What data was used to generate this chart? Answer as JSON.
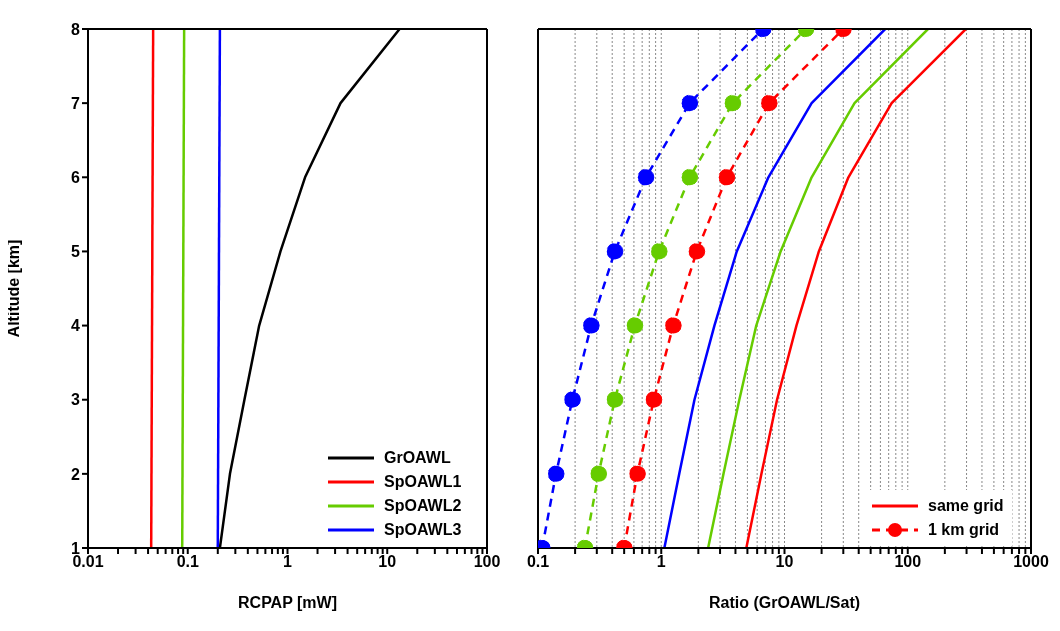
{
  "chart_data": [
    {
      "type": "line",
      "xlabel": "RCPAP [mW]",
      "ylabel": "Altitude [km]",
      "log": "x",
      "grid": false,
      "legend": "bottom right",
      "marker": "none",
      "line_style": "solid",
      "xlim": [
        0.01,
        100
      ],
      "xticks": [
        0.01,
        {
          "value": 0.02,
          "label": null
        },
        {
          "value": 0.03,
          "label": null
        },
        {
          "value": 0.04,
          "label": null
        },
        {
          "value": 0.05,
          "label": null
        },
        {
          "value": 0.06,
          "label": null
        },
        {
          "value": 0.07,
          "label": null
        },
        {
          "value": 0.08,
          "label": null
        },
        {
          "value": 0.09,
          "label": null
        },
        0.1,
        {
          "value": 0.2,
          "label": null
        },
        {
          "value": 0.3,
          "label": null
        },
        {
          "value": 0.4,
          "label": null
        },
        {
          "value": 0.5,
          "label": null
        },
        {
          "value": 0.6,
          "label": null
        },
        {
          "value": 0.7,
          "label": null
        },
        {
          "value": 0.8,
          "label": null
        },
        {
          "value": 0.9,
          "label": null
        },
        1,
        {
          "value": 2,
          "label": null
        },
        {
          "value": 3,
          "label": null
        },
        {
          "value": 4,
          "label": null
        },
        {
          "value": 5,
          "label": null
        },
        {
          "value": 6,
          "label": null
        },
        {
          "value": 7,
          "label": null
        },
        {
          "value": 8,
          "label": null
        },
        {
          "value": 9,
          "label": null
        },
        10,
        {
          "value": 20,
          "label": null
        },
        {
          "value": 30,
          "label": null
        },
        {
          "value": 40,
          "label": null
        },
        {
          "value": 50,
          "label": null
        },
        {
          "value": 60,
          "label": null
        },
        {
          "value": 70,
          "label": null
        },
        {
          "value": 80,
          "label": null
        },
        {
          "value": 90,
          "label": null
        },
        100
      ],
      "ylim": [
        1,
        8
      ],
      "yticks": [
        1,
        2,
        3,
        4,
        5,
        6,
        7,
        8
      ],
      "series": [
        {
          "name": "GrOAWL",
          "color": "#000000",
          "x": [
            0.21,
            0.265,
            0.37,
            0.52,
            0.85,
            1.5,
            3.4,
            13.3
          ],
          "values": [
            1,
            2,
            3,
            4,
            5,
            6,
            7,
            8
          ]
        },
        {
          "name": "SpOAWL1",
          "color": "#ff0000",
          "x": [
            0.043,
            0.045
          ],
          "values": [
            1,
            8
          ]
        },
        {
          "name": "SpOAWL2",
          "color": "#66cc00",
          "x": [
            0.088,
            0.092
          ],
          "values": [
            1,
            8
          ]
        },
        {
          "name": "SpOAWL3",
          "color": "#0000ff",
          "x": [
            0.2,
            0.21
          ],
          "values": [
            1,
            8
          ]
        }
      ]
    },
    {
      "type": "line",
      "xlabel": "Ratio (GrOAWL/Sat)",
      "log": "x",
      "grid": "x",
      "legend": "bottom right",
      "tick_labels": "x",
      "xlim": [
        0.1,
        1000
      ],
      "xticks": [
        0.1,
        {
          "value": 0.2,
          "label": null
        },
        {
          "value": 0.3,
          "label": null
        },
        {
          "value": 0.4,
          "label": null
        },
        {
          "value": 0.5,
          "label": null
        },
        {
          "value": 0.6,
          "label": null
        },
        {
          "value": 0.7,
          "label": null
        },
        {
          "value": 0.8,
          "label": null
        },
        {
          "value": 0.9,
          "label": null
        },
        1,
        {
          "value": 2,
          "label": null
        },
        {
          "value": 3,
          "label": null
        },
        {
          "value": 4,
          "label": null
        },
        {
          "value": 5,
          "label": null
        },
        {
          "value": 6,
          "label": null
        },
        {
          "value": 7,
          "label": null
        },
        {
          "value": 8,
          "label": null
        },
        {
          "value": 9,
          "label": null
        },
        10,
        {
          "value": 20,
          "label": null
        },
        {
          "value": 30,
          "label": null
        },
        {
          "value": 40,
          "label": null
        },
        {
          "value": 50,
          "label": null
        },
        {
          "value": 60,
          "label": null
        },
        {
          "value": 70,
          "label": null
        },
        {
          "value": 80,
          "label": null
        },
        {
          "value": 90,
          "label": null
        },
        100,
        {
          "value": 200,
          "label": null
        },
        {
          "value": 300,
          "label": null
        },
        {
          "value": 400,
          "label": null
        },
        {
          "value": 500,
          "label": null
        },
        {
          "value": 600,
          "label": null
        },
        {
          "value": 700,
          "label": null
        },
        {
          "value": 800,
          "label": null
        },
        {
          "value": 900,
          "label": null
        },
        1000
      ],
      "ylim": [
        1,
        8
      ],
      "yticks": [
        1,
        2,
        3,
        4,
        5,
        6,
        7,
        8
      ],
      "series": [
        {
          "name": "same grid",
          "color": "#ff0000",
          "marker": "none",
          "line_style": "solid",
          "x": [
            4.9,
            6.5,
            8.7,
            12.5,
            19,
            33,
            74,
            296
          ],
          "values": [
            1,
            2,
            3,
            4,
            5,
            6,
            7,
            8
          ]
        },
        {
          "color": "#66cc00",
          "marker": "none",
          "line_style": "solid",
          "x": [
            2.4,
            3.2,
            4.3,
            5.9,
            9.3,
            16.6,
            37,
            146
          ],
          "values": [
            1,
            2,
            3,
            4,
            5,
            6,
            7,
            8
          ]
        },
        {
          "color": "#0000ff",
          "marker": "none",
          "line_style": "solid",
          "x": [
            1.06,
            1.4,
            1.86,
            2.7,
            4.1,
            7.4,
            16.6,
            65.6
          ],
          "values": [
            1,
            2,
            3,
            4,
            5,
            6,
            7,
            8
          ]
        },
        {
          "name": "1 km grid",
          "color": "#ff0000",
          "marker": "circle",
          "line_style": "dashed",
          "x": [
            0.5,
            0.64,
            0.87,
            1.25,
            1.94,
            3.4,
            7.5,
            30
          ],
          "values": [
            1,
            2,
            3,
            4,
            5,
            6,
            7,
            8
          ]
        },
        {
          "color": "#66cc00",
          "marker": "circle",
          "line_style": "dashed",
          "x": [
            0.24,
            0.31,
            0.42,
            0.61,
            0.96,
            1.7,
            3.8,
            14.9
          ],
          "values": [
            1,
            2,
            3,
            4,
            5,
            6,
            7,
            8
          ]
        },
        {
          "color": "#0000ff",
          "marker": "circle",
          "line_style": "dashed",
          "x": [
            0.108,
            0.14,
            0.19,
            0.27,
            0.42,
            0.75,
            1.7,
            6.7
          ],
          "values": [
            1,
            2,
            3,
            4,
            5,
            6,
            7,
            8
          ]
        }
      ]
    }
  ]
}
